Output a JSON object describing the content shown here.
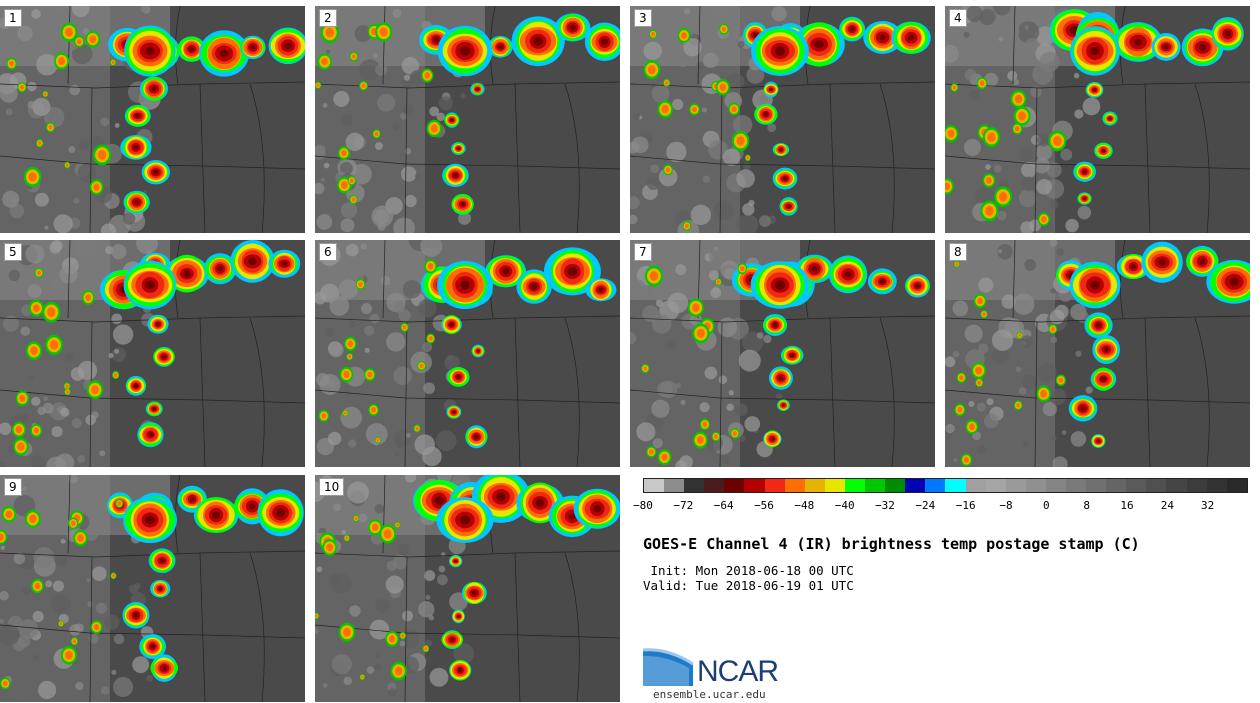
{
  "panels": [
    {
      "label": "1"
    },
    {
      "label": "2"
    },
    {
      "label": "3"
    },
    {
      "label": "4"
    },
    {
      "label": "5"
    },
    {
      "label": "6"
    },
    {
      "label": "7"
    },
    {
      "label": "8"
    },
    {
      "label": "9"
    },
    {
      "label": "10"
    }
  ],
  "colorbar": {
    "colors": [
      "#c8c8c8",
      "#8c8c8c",
      "#323232",
      "#4b1c1c",
      "#6e0000",
      "#b40000",
      "#f02814",
      "#ff6e00",
      "#e6b400",
      "#e6e600",
      "#00ff00",
      "#00c800",
      "#008c00",
      "#0000b4",
      "#0078ff",
      "#00ffff",
      "#a0a0a0",
      "#a5a5a5",
      "#9a9a9a",
      "#909090",
      "#858585",
      "#7a7a7a",
      "#707070",
      "#656565",
      "#5a5a5a",
      "#505050",
      "#454545",
      "#3c3c3c",
      "#333333",
      "#2a2a2a"
    ],
    "ticks": [
      "−80",
      "−72",
      "−64",
      "−56",
      "−48",
      "−40",
      "−32",
      "−24",
      "−16",
      "−8",
      "0",
      "8",
      "16",
      "24",
      "32"
    ],
    "tick_values": [
      -80,
      -72,
      -64,
      -56,
      -48,
      -40,
      -32,
      -24,
      -16,
      -8,
      0,
      8,
      16,
      24,
      32
    ],
    "vmin": -80,
    "vmax": 40
  },
  "title": "GOES-E Channel 4 (IR) brightness temp postage stamp (C)",
  "init_line": " Init: Mon 2018-06-18 00 UTC",
  "valid_line": "Valid: Tue 2018-06-19 01 UTC",
  "logo": {
    "text": "NCAR",
    "url": "ensemble.ucar.edu",
    "color": "#1b3f73",
    "accent": "#1e7bc8"
  }
}
